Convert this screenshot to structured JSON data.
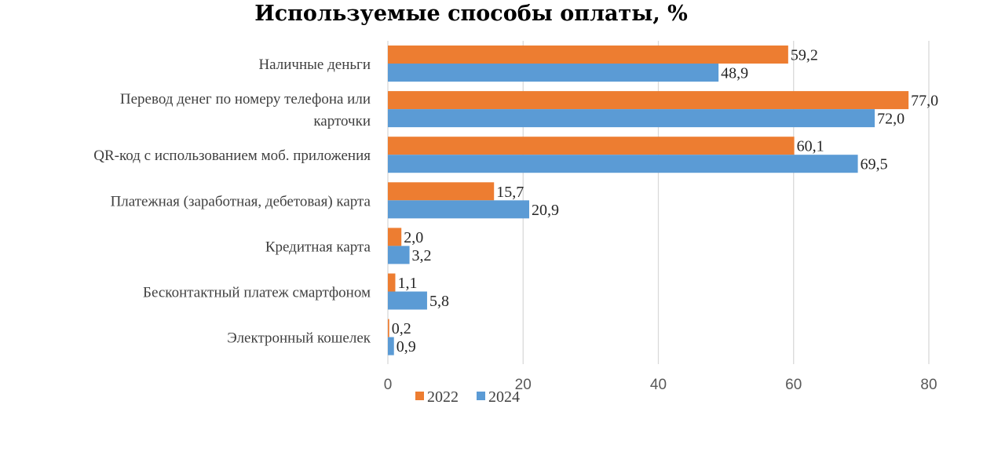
{
  "chart_data": {
    "type": "bar",
    "orientation": "horizontal",
    "title": "Используемые способы оплаты, %",
    "categories": [
      [
        "Наличные деньги"
      ],
      [
        "Перевод денег по номеру телефона или",
        "карточки"
      ],
      [
        "QR-код с использованием моб. приложения"
      ],
      [
        "Платежная (заработная, дебетовая) карта"
      ],
      [
        "Кредитная карта"
      ],
      [
        "Бесконтактный платеж смартфоном"
      ],
      [
        "Электронный кошелек"
      ]
    ],
    "series": [
      {
        "name": "2022",
        "color": "#ED7D31",
        "values": [
          59.2,
          77.0,
          60.1,
          15.7,
          2.0,
          1.1,
          0.2
        ],
        "labels": [
          "59,2",
          "77,0",
          "60,1",
          "15,7",
          "2,0",
          "1,1",
          "0,2"
        ]
      },
      {
        "name": "2024",
        "color": "#5B9BD5",
        "values": [
          48.9,
          72.0,
          69.5,
          20.9,
          3.2,
          5.8,
          0.9
        ],
        "labels": [
          "48,9",
          "72,0",
          "69,5",
          "20,9",
          "3,2",
          "5,8",
          "0,9"
        ]
      }
    ],
    "xlim": [
      0,
      80
    ],
    "xticks": [
      "0",
      "20",
      "40",
      "60",
      "80"
    ],
    "grid": true,
    "legend": "bottom"
  }
}
